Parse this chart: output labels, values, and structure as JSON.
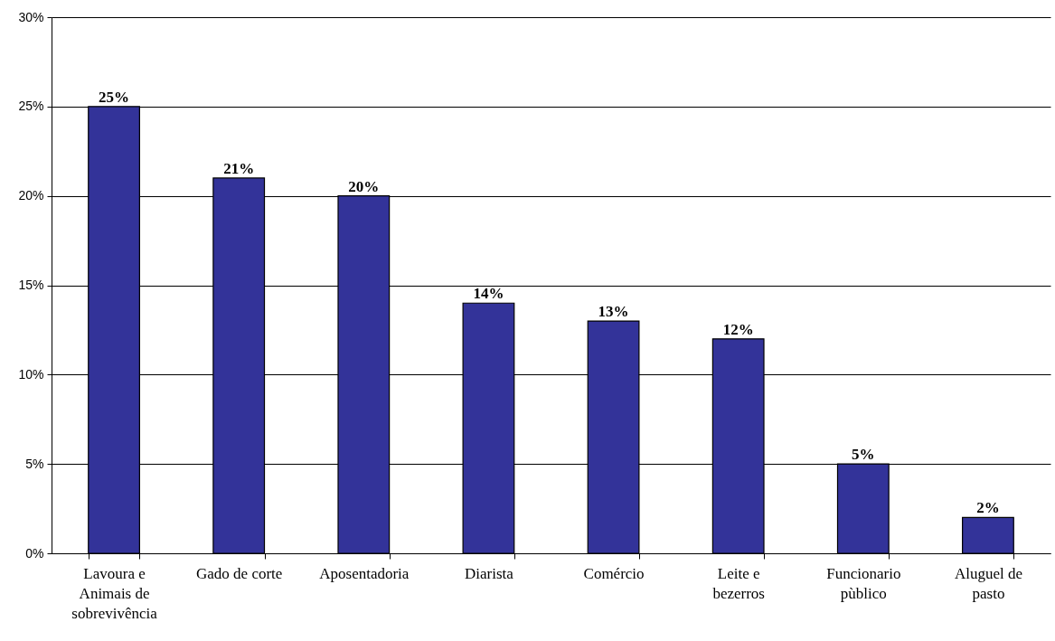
{
  "chart_data": {
    "type": "bar",
    "categories": [
      "Lavoura e Animais de sobrevivência",
      "Gado de corte",
      "Aposentadoria",
      "Diarista",
      "Comércio",
      "Leite e bezerros",
      "Funcionario pùblico",
      "Aluguel de pasto"
    ],
    "values": [
      25,
      21,
      20,
      14,
      13,
      12,
      5,
      2
    ],
    "value_labels": [
      "25%",
      "21%",
      "20%",
      "14%",
      "13%",
      "12%",
      "5%",
      "2%"
    ],
    "color": "#333399",
    "ylim": [
      0,
      30
    ],
    "yticks": [
      {
        "value": 0,
        "label": "0%"
      },
      {
        "value": 5,
        "label": "5%"
      },
      {
        "value": 10,
        "label": "10%"
      },
      {
        "value": 15,
        "label": "15%"
      },
      {
        "value": 20,
        "label": "20%"
      },
      {
        "value": 25,
        "label": "25%"
      },
      {
        "value": 30,
        "label": "30%"
      }
    ],
    "grid": "y"
  }
}
